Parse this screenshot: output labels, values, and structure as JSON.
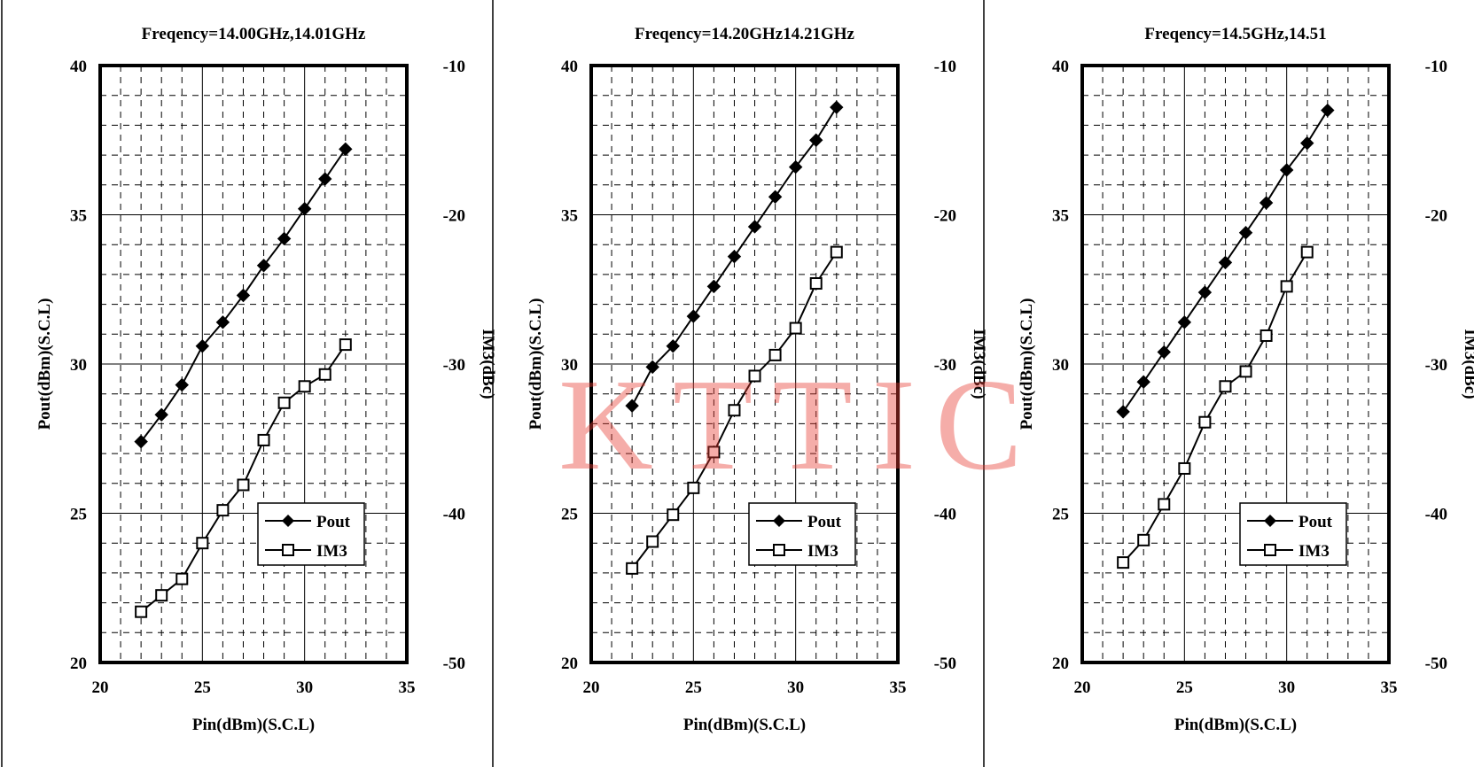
{
  "watermark": "KTTIC",
  "colors": {
    "line": "#000000",
    "watermark": "#e63c32",
    "grid": "#000000"
  },
  "chart_data": [
    {
      "type": "line",
      "title": "Freqency=14.00GHz,14.01GHz",
      "xlabel": "Pin(dBm)(S.C.L)",
      "ylabel": "Pout(dBm)(S.C.L)",
      "y2label": "IM3(dBc)",
      "xlim": [
        20,
        35
      ],
      "ylim": [
        20,
        40
      ],
      "y2lim": [
        -50,
        -10
      ],
      "xticks": [
        "20",
        "25",
        "30",
        "35"
      ],
      "yticks": [
        "20",
        "25",
        "30",
        "35",
        "40"
      ],
      "y2ticks": [
        "-50",
        "-40",
        "-30",
        "-20",
        "-10"
      ],
      "grid": true,
      "legend": "lower-right",
      "series": [
        {
          "name": "Pout",
          "axis": "left",
          "marker": "filled-diamond",
          "x": [
            22,
            23,
            24,
            25,
            26,
            27,
            28,
            29,
            30,
            31,
            32
          ],
          "y": [
            27.4,
            28.3,
            29.3,
            30.6,
            31.4,
            32.3,
            33.3,
            34.2,
            35.2,
            36.2,
            37.2
          ]
        },
        {
          "name": "IM3",
          "axis": "right",
          "marker": "open-square",
          "x": [
            22,
            23,
            24,
            25,
            26,
            27,
            28,
            29,
            30,
            31,
            32
          ],
          "y": [
            -46.6,
            -45.5,
            -44.4,
            -42.0,
            -39.8,
            -38.1,
            -35.1,
            -32.6,
            -31.5,
            -30.7,
            -28.7
          ]
        }
      ]
    },
    {
      "type": "line",
      "title": "Freqency=14.20GHz14.21GHz",
      "xlabel": "Pin(dBm)(S.C.L)",
      "ylabel": "Pout(dBm)(S.C.L)",
      "y2label": "IM3(dBc)",
      "xlim": [
        20,
        35
      ],
      "ylim": [
        20,
        40
      ],
      "y2lim": [
        -50,
        -10
      ],
      "xticks": [
        "20",
        "25",
        "30",
        "35"
      ],
      "yticks": [
        "20",
        "25",
        "30",
        "35",
        "40"
      ],
      "y2ticks": [
        "-50",
        "-40",
        "-30",
        "-20",
        "-10"
      ],
      "grid": true,
      "legend": "lower-right",
      "series": [
        {
          "name": "Pout",
          "axis": "left",
          "marker": "filled-diamond",
          "x": [
            22,
            23,
            24,
            25,
            26,
            27,
            28,
            29,
            30,
            31,
            32
          ],
          "y": [
            28.6,
            29.9,
            30.6,
            31.6,
            32.6,
            33.6,
            34.6,
            35.6,
            36.6,
            37.5,
            38.6
          ]
        },
        {
          "name": "IM3",
          "axis": "right",
          "marker": "open-square",
          "x": [
            22,
            23,
            24,
            25,
            26,
            27,
            28,
            29,
            30,
            31,
            32
          ],
          "y": [
            -43.7,
            -41.9,
            -40.1,
            -38.3,
            -35.9,
            -33.1,
            -30.8,
            -29.4,
            -27.6,
            -24.6,
            -22.5
          ]
        }
      ]
    },
    {
      "type": "line",
      "title": "Freqency=14.5GHz,14.51",
      "xlabel": "Pin(dBm)(S.C.L)",
      "ylabel": "Pout(dBm)(S.C.L)",
      "y2label": "IM3(dBc)",
      "xlim": [
        20,
        35
      ],
      "ylim": [
        20,
        40
      ],
      "y2lim": [
        -50,
        -10
      ],
      "xticks": [
        "20",
        "25",
        "30",
        "35"
      ],
      "yticks": [
        "20",
        "25",
        "30",
        "35",
        "40"
      ],
      "y2ticks": [
        "-50",
        "-40",
        "-30",
        "-20",
        "-10"
      ],
      "grid": true,
      "legend": "lower-right",
      "series": [
        {
          "name": "Pout",
          "axis": "left",
          "marker": "filled-diamond",
          "x": [
            22,
            23,
            24,
            25,
            26,
            27,
            28,
            29,
            30,
            31,
            32
          ],
          "y": [
            28.4,
            29.4,
            30.4,
            31.4,
            32.4,
            33.4,
            34.4,
            35.4,
            36.5,
            37.4,
            38.5
          ]
        },
        {
          "name": "IM3",
          "axis": "right",
          "marker": "open-square",
          "x": [
            22,
            23,
            24,
            25,
            26,
            27,
            28,
            29,
            30,
            31
          ],
          "y": [
            -43.3,
            -41.8,
            -39.4,
            -37.0,
            -33.9,
            -31.5,
            -30.5,
            -28.1,
            -24.8,
            -22.5
          ]
        }
      ]
    }
  ]
}
